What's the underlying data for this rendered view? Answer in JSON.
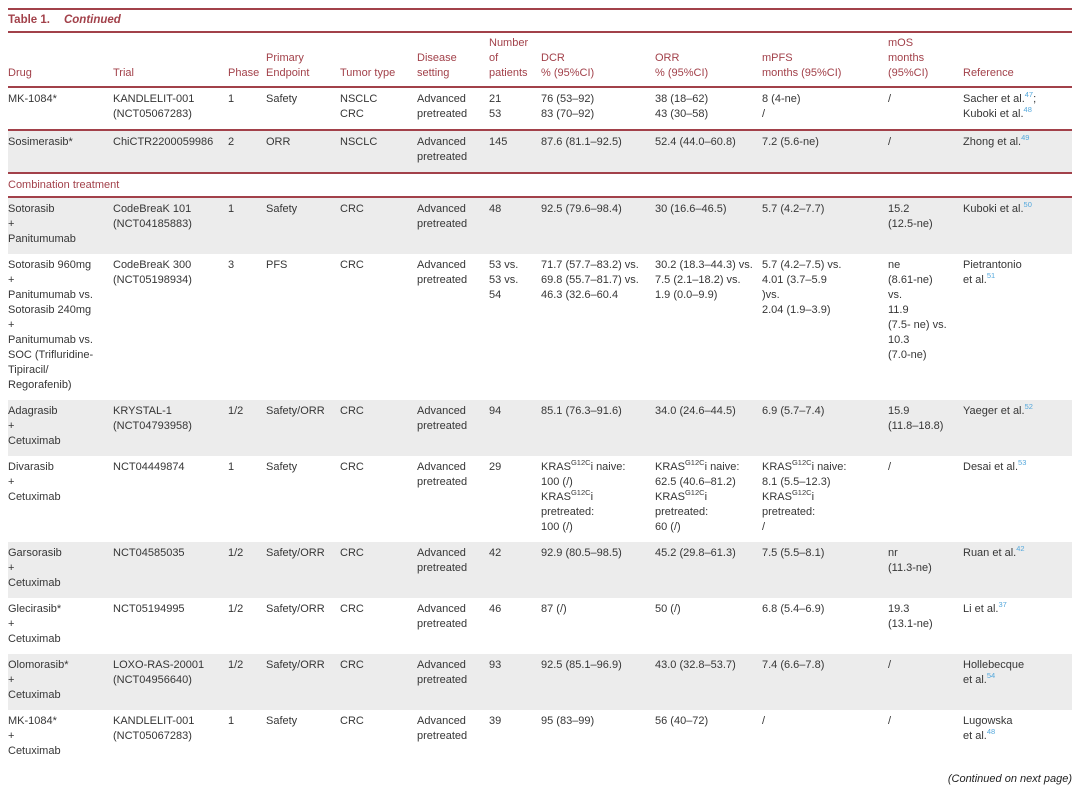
{
  "title": {
    "label": "Table 1.",
    "continued": "Continued"
  },
  "colors": {
    "accent_red": "#A2414A",
    "stripe_gray": "#ECECEC",
    "reference_blue": "#55A8DC",
    "body_text": "#363636"
  },
  "footer": {
    "text": "(Continued on next page)"
  },
  "table": {
    "columns": [
      {
        "id": "drug",
        "width": 105,
        "lines": [
          "Drug"
        ]
      },
      {
        "id": "trial",
        "width": 115,
        "lines": [
          "Trial"
        ]
      },
      {
        "id": "phase",
        "width": 38,
        "lines": [
          "Phase"
        ]
      },
      {
        "id": "endpoint",
        "width": 74,
        "lines": [
          "Primary",
          "Endpoint"
        ]
      },
      {
        "id": "tumor",
        "width": 77,
        "lines": [
          "Tumor type"
        ]
      },
      {
        "id": "disease",
        "width": 72,
        "lines": [
          "Disease",
          "setting"
        ]
      },
      {
        "id": "patients",
        "width": 52,
        "lines": [
          "Number",
          "of",
          "patients"
        ]
      },
      {
        "id": "dcr",
        "width": 114,
        "lines": [
          "DCR",
          "% (95%CI)"
        ]
      },
      {
        "id": "orr",
        "width": 107,
        "lines": [
          "ORR",
          "% (95%CI)"
        ]
      },
      {
        "id": "mpfs",
        "width": 126,
        "lines": [
          "mPFS",
          "months (95%CI)"
        ]
      },
      {
        "id": "mos",
        "width": 75,
        "lines": [
          "mOS",
          "months",
          "(95%CI)"
        ]
      },
      {
        "id": "ref",
        "width": 109,
        "lines": [
          "Reference"
        ]
      }
    ],
    "rows": [
      {
        "shade": false,
        "sep": true,
        "cells": [
          [
            "MK-1084*"
          ],
          [
            "KANDLELIT-001",
            "(NCT05067283)"
          ],
          [
            "1"
          ],
          [
            "Safety"
          ],
          [
            "NSCLC",
            "CRC"
          ],
          [
            "Advanced",
            "pretreated"
          ],
          [
            "21",
            "53"
          ],
          [
            "76 (53–92)",
            "83 (70–92)"
          ],
          [
            "38 (18–62)",
            "43 (30–58)"
          ],
          [
            "8 (4-ne)",
            "/"
          ],
          [
            "/"
          ],
          [
            "Sacher et al.^{47};",
            "Kuboki et al.^{48}"
          ]
        ]
      },
      {
        "shade": true,
        "sep": true,
        "cells": [
          [
            "Sosimerasib*"
          ],
          [
            "ChiCTR2200059986"
          ],
          [
            "2"
          ],
          [
            "ORR"
          ],
          [
            "NSCLC"
          ],
          [
            "Advanced",
            "pretreated"
          ],
          [
            "145"
          ],
          [
            "87.6 (81.1–92.5)"
          ],
          [
            "52.4 (44.0–60.8)"
          ],
          [
            "7.2 (5.6-ne)"
          ],
          [
            "/"
          ],
          [
            "Zhong et al.^{49}"
          ]
        ]
      },
      {
        "section": true,
        "label": "Combination treatment"
      },
      {
        "shade": true,
        "sep": false,
        "cells": [
          [
            "Sotorasib",
            "+",
            "Panitumumab"
          ],
          [
            "CodeBreaK 101",
            "(NCT04185883)"
          ],
          [
            "1"
          ],
          [
            "Safety"
          ],
          [
            "CRC"
          ],
          [
            "Advanced",
            "pretreated"
          ],
          [
            "48"
          ],
          [
            "92.5 (79.6–98.4)"
          ],
          [
            "30 (16.6–46.5)"
          ],
          [
            "5.7 (4.2–7.7)"
          ],
          [
            "15.2",
            "(12.5-ne)"
          ],
          [
            "Kuboki et al.^{50}"
          ]
        ]
      },
      {
        "shade": false,
        "sep": false,
        "cells": [
          [
            "Sotorasib 960mg",
            "+",
            "Panitumumab vs.",
            "Sotorasib 240mg",
            "+",
            "Panitumumab vs.",
            "SOC (Trifluridine-",
            "Tipiracil/",
            "Regorafenib)"
          ],
          [
            "CodeBreaK 300",
            "(NCT05198934)"
          ],
          [
            "3"
          ],
          [
            "PFS"
          ],
          [
            "CRC"
          ],
          [
            "Advanced",
            "pretreated"
          ],
          [
            "53 vs.",
            "53 vs.",
            "54"
          ],
          [
            "71.7 (57.7–83.2) vs.",
            "69.8 (55.7–81.7) vs.",
            "46.3 (32.6–60.4"
          ],
          [
            "30.2 (18.3–44.3) vs.",
            "7.5 (2.1–18.2) vs.",
            "1.9 (0.0–9.9)"
          ],
          [
            "5.7 (4.2–7.5) vs.",
            "4.01 (3.7–5.9",
            ")vs.",
            "2.04 (1.9–3.9)"
          ],
          [
            "ne",
            "(8.61-ne)",
            "vs.",
            "11.9",
            "(7.5- ne) vs.",
            "10.3",
            "(7.0-ne)"
          ],
          [
            "Pietrantonio",
            "et al.^{51}"
          ]
        ]
      },
      {
        "shade": true,
        "sep": false,
        "cells": [
          [
            "Adagrasib",
            "+",
            "Cetuximab"
          ],
          [
            "KRYSTAL-1",
            "(NCT04793958)"
          ],
          [
            "1/2"
          ],
          [
            "Safety/ORR"
          ],
          [
            "CRC"
          ],
          [
            "Advanced",
            "pretreated"
          ],
          [
            "94"
          ],
          [
            "85.1 (76.3–91.6)"
          ],
          [
            "34.0 (24.6–44.5)"
          ],
          [
            "6.9 (5.7–7.4)"
          ],
          [
            "15.9",
            "(11.8–18.8)"
          ],
          [
            "Yaeger et al.^{52}"
          ]
        ]
      },
      {
        "shade": false,
        "sep": false,
        "cells": [
          [
            "Divarasib",
            "+",
            "Cetuximab"
          ],
          [
            "NCT04449874"
          ],
          [
            "1"
          ],
          [
            "Safety"
          ],
          [
            "CRC"
          ],
          [
            "Advanced",
            "pretreated"
          ],
          [
            "29"
          ],
          [
            "KRAS^{G12C}i naive:",
            "100 (/)",
            "KRAS^{G12C}i",
            "pretreated:",
            "100 (/)"
          ],
          [
            "KRAS^{G12C}i naive:",
            "62.5 (40.6–81.2)",
            "KRAS^{G12C}i",
            "pretreated:",
            "60 (/)"
          ],
          [
            "KRAS^{G12C}i naive:",
            "8.1 (5.5–12.3)",
            "KRAS^{G12C}i",
            "pretreated:",
            "/"
          ],
          [
            "/"
          ],
          [
            "Desai et al.^{53}"
          ]
        ]
      },
      {
        "shade": true,
        "sep": false,
        "cells": [
          [
            "Garsorasib",
            "+",
            "Cetuximab"
          ],
          [
            "NCT04585035"
          ],
          [
            "1/2"
          ],
          [
            "Safety/ORR"
          ],
          [
            "CRC"
          ],
          [
            "Advanced",
            "pretreated"
          ],
          [
            "42"
          ],
          [
            "92.9 (80.5–98.5)"
          ],
          [
            "45.2 (29.8–61.3)"
          ],
          [
            "7.5 (5.5–8.1)"
          ],
          [
            "nr",
            "(11.3-ne)"
          ],
          [
            "Ruan et al.^{42}"
          ]
        ]
      },
      {
        "shade": false,
        "sep": false,
        "cells": [
          [
            "Glecirasib*",
            "+",
            "Cetuximab"
          ],
          [
            "NCT05194995"
          ],
          [
            "1/2"
          ],
          [
            "Safety/ORR"
          ],
          [
            "CRC"
          ],
          [
            "Advanced",
            "pretreated"
          ],
          [
            "46"
          ],
          [
            "87 (/)"
          ],
          [
            "50 (/)"
          ],
          [
            "6.8 (5.4–6.9)"
          ],
          [
            "19.3",
            "(13.1-ne)"
          ],
          [
            "Li et al.^{37}"
          ]
        ]
      },
      {
        "shade": true,
        "sep": false,
        "cells": [
          [
            "Olomorasib*",
            "+",
            "Cetuximab"
          ],
          [
            "LOXO-RAS-20001",
            "(NCT04956640)"
          ],
          [
            "1/2"
          ],
          [
            "Safety/ORR"
          ],
          [
            "CRC"
          ],
          [
            "Advanced",
            "pretreated"
          ],
          [
            "93"
          ],
          [
            "92.5 (85.1–96.9)"
          ],
          [
            "43.0 (32.8–53.7)"
          ],
          [
            "7.4 (6.6–7.8)"
          ],
          [
            "/"
          ],
          [
            "Hollebecque",
            "et al.^{54}"
          ]
        ]
      },
      {
        "shade": false,
        "sep": false,
        "cells": [
          [
            "MK-1084*",
            "+",
            "Cetuximab"
          ],
          [
            "KANDLELIT-001",
            "(NCT05067283)"
          ],
          [
            "1"
          ],
          [
            "Safety"
          ],
          [
            "CRC"
          ],
          [
            "Advanced",
            "pretreated"
          ],
          [
            "39"
          ],
          [
            "95 (83–99)"
          ],
          [
            "56 (40–72)"
          ],
          [
            "/"
          ],
          [
            "/"
          ],
          [
            "Lugowska",
            "et al.^{48}"
          ]
        ]
      }
    ]
  }
}
